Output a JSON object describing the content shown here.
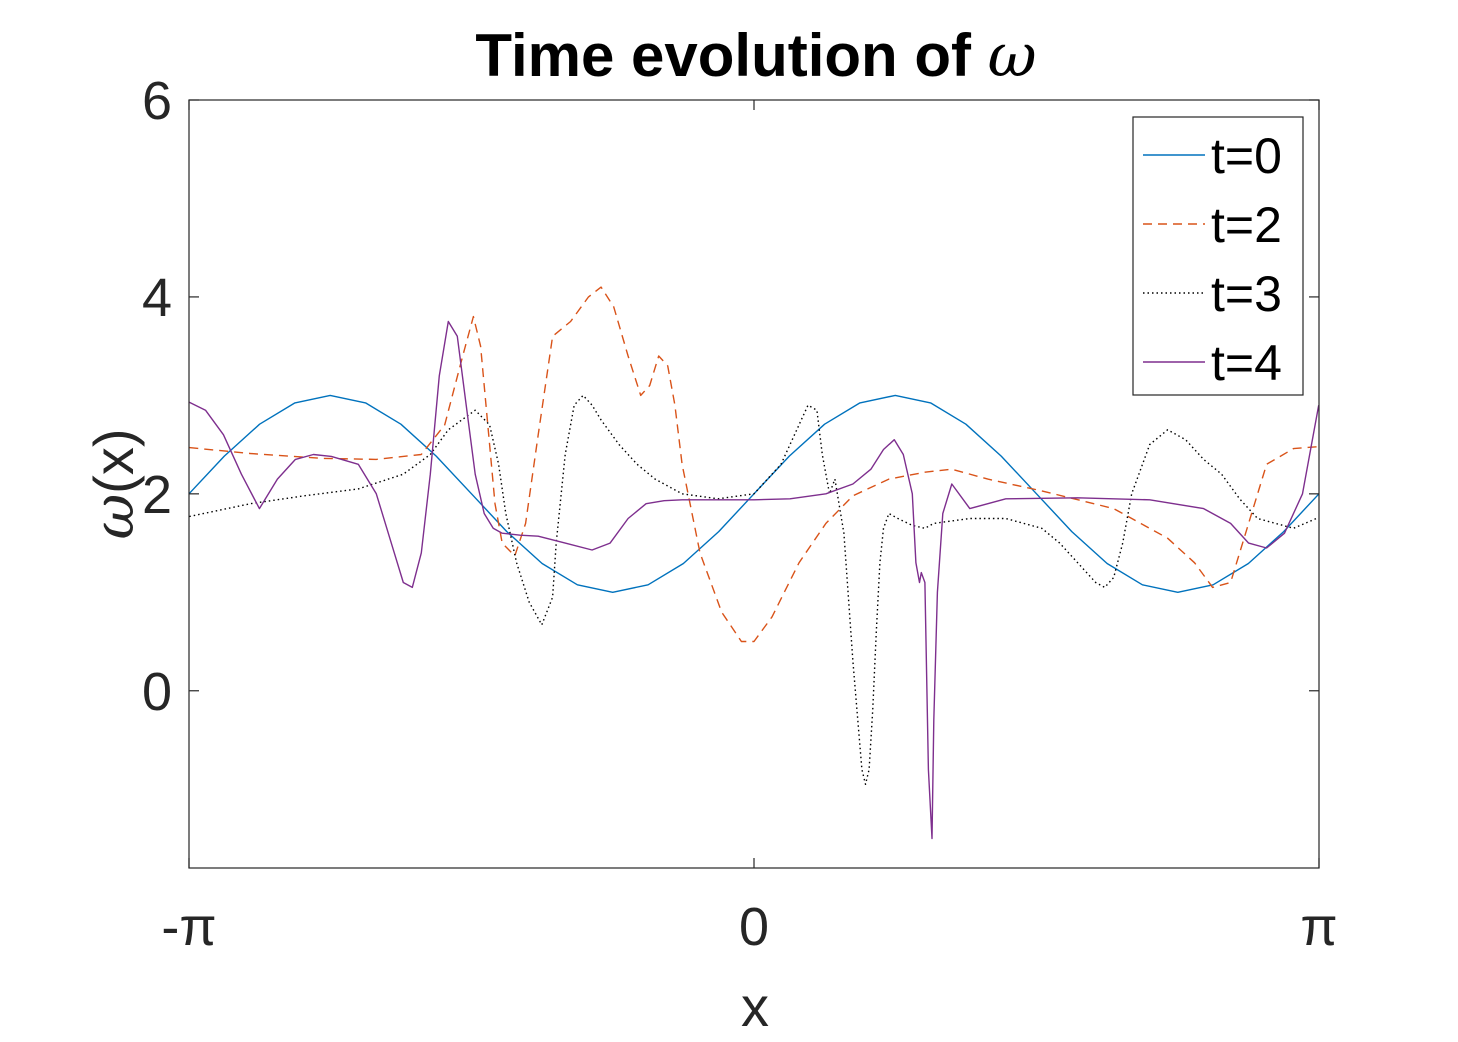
{
  "chart_data": {
    "type": "line",
    "title": {
      "text": "Time evolution of ",
      "symbol": "ω"
    },
    "xlabel": "x",
    "ylabel": {
      "symbol": "ω",
      "text": "(x)"
    },
    "xlim": [
      -3.14159,
      3.14159
    ],
    "ylim": [
      -1.8,
      6
    ],
    "xticks": [
      {
        "value": -3.14159,
        "label": "-π"
      },
      {
        "value": 0,
        "label": "0"
      },
      {
        "value": 3.14159,
        "label": "π"
      }
    ],
    "yticks": [
      {
        "value": 0,
        "label": "0"
      },
      {
        "value": 2,
        "label": "2"
      },
      {
        "value": 4,
        "label": "4"
      },
      {
        "value": 6,
        "label": "6"
      }
    ],
    "grid": false,
    "legend_position": "top-right",
    "series": [
      {
        "name": "t=0",
        "color": "#0072BD",
        "style": "solid",
        "x": [
          -3.1416,
          -2.9452,
          -2.7489,
          -2.5525,
          -2.3562,
          -2.1598,
          -1.9635,
          -1.7671,
          -1.5708,
          -1.3744,
          -1.1781,
          -0.9817,
          -0.7854,
          -0.589,
          -0.3927,
          -0.1963,
          0,
          0.1963,
          0.3927,
          0.589,
          0.7854,
          0.9817,
          1.1781,
          1.3744,
          1.5708,
          1.7671,
          1.9635,
          2.1598,
          2.3562,
          2.5525,
          2.7489,
          2.9452,
          3.1416
        ],
        "y": [
          2.0,
          2.383,
          2.707,
          2.924,
          3.0,
          2.924,
          2.707,
          2.383,
          2.0,
          1.617,
          1.293,
          1.076,
          1.0,
          1.076,
          1.293,
          1.617,
          2.0,
          2.383,
          2.707,
          2.924,
          3.0,
          2.924,
          2.707,
          2.383,
          2.0,
          1.617,
          1.293,
          1.076,
          1.0,
          1.076,
          1.293,
          1.617,
          2.0
        ]
      },
      {
        "name": "t=2",
        "color": "#D95319",
        "style": "dashed",
        "x": [
          -3.14,
          -2.8,
          -2.4,
          -2.1,
          -1.85,
          -1.72,
          -1.62,
          -1.56,
          -1.52,
          -1.48,
          -1.44,
          -1.4,
          -1.33,
          -1.27,
          -1.2,
          -1.12,
          -1.02,
          -0.92,
          -0.85,
          -0.78,
          -0.7,
          -0.63,
          -0.58,
          -0.53,
          -0.48,
          -0.44,
          -0.4,
          -0.3,
          -0.18,
          -0.07,
          0.0,
          0.1,
          0.25,
          0.4,
          0.55,
          0.75,
          0.95,
          1.1,
          1.3,
          1.6,
          2.0,
          2.3,
          2.45,
          2.55,
          2.65,
          2.75,
          2.85,
          3.0,
          3.14
        ],
        "y": [
          2.47,
          2.41,
          2.36,
          2.35,
          2.4,
          2.7,
          3.4,
          3.8,
          3.5,
          2.7,
          1.9,
          1.5,
          1.37,
          1.7,
          2.6,
          3.6,
          3.75,
          4.0,
          4.1,
          3.9,
          3.4,
          3.0,
          3.1,
          3.4,
          3.3,
          2.9,
          2.3,
          1.4,
          0.8,
          0.5,
          0.5,
          0.75,
          1.3,
          1.7,
          1.98,
          2.15,
          2.22,
          2.25,
          2.15,
          2.03,
          1.85,
          1.55,
          1.3,
          1.05,
          1.1,
          1.7,
          2.3,
          2.46,
          2.48
        ]
      },
      {
        "name": "t=3",
        "color": "#000000",
        "style": "dotted",
        "x": [
          -3.14,
          -2.8,
          -2.5,
          -2.2,
          -1.95,
          -1.8,
          -1.7,
          -1.55,
          -1.47,
          -1.42,
          -1.38,
          -1.32,
          -1.25,
          -1.18,
          -1.12,
          -1.1,
          -1.05,
          -1.0,
          -0.95,
          -0.9,
          -0.85,
          -0.75,
          -0.65,
          -0.55,
          -0.4,
          -0.2,
          0.0,
          0.15,
          0.3,
          0.35,
          0.38,
          0.42,
          0.45,
          0.5,
          0.55,
          0.6,
          0.62,
          0.64,
          0.66,
          0.68,
          0.7,
          0.72,
          0.75,
          0.8,
          0.88,
          0.95,
          1.0,
          1.2,
          1.4,
          1.6,
          1.7,
          1.8,
          1.9,
          1.95,
          2.0,
          2.05,
          2.1,
          2.2,
          2.3,
          2.4,
          2.5,
          2.6,
          2.7,
          2.8,
          3.0,
          3.14
        ],
        "y": [
          1.77,
          1.9,
          1.98,
          2.05,
          2.2,
          2.4,
          2.65,
          2.85,
          2.7,
          2.3,
          1.8,
          1.3,
          0.9,
          0.67,
          0.95,
          1.5,
          2.4,
          2.9,
          3.0,
          2.9,
          2.75,
          2.5,
          2.3,
          2.15,
          2.0,
          1.95,
          2.0,
          2.3,
          2.9,
          2.85,
          2.4,
          2.0,
          2.15,
          1.6,
          0.3,
          -0.8,
          -0.95,
          -0.8,
          -0.2,
          0.6,
          1.3,
          1.65,
          1.8,
          1.75,
          1.68,
          1.65,
          1.7,
          1.75,
          1.75,
          1.65,
          1.5,
          1.3,
          1.1,
          1.05,
          1.15,
          1.5,
          2.0,
          2.5,
          2.65,
          2.55,
          2.35,
          2.2,
          1.95,
          1.75,
          1.65,
          1.76
        ]
      },
      {
        "name": "t=4",
        "color": "#7E2F8E",
        "style": "solid",
        "x": [
          -3.14,
          -3.05,
          -2.95,
          -2.85,
          -2.75,
          -2.65,
          -2.55,
          -2.45,
          -2.35,
          -2.2,
          -2.1,
          -2.0,
          -1.95,
          -1.9,
          -1.85,
          -1.8,
          -1.75,
          -1.7,
          -1.65,
          -1.6,
          -1.55,
          -1.5,
          -1.45,
          -1.4,
          -1.3,
          -1.2,
          -1.05,
          -0.9,
          -0.8,
          -0.7,
          -0.6,
          -0.5,
          -0.4,
          -0.2,
          0.0,
          0.2,
          0.4,
          0.55,
          0.65,
          0.72,
          0.78,
          0.83,
          0.88,
          0.9,
          0.92,
          0.93,
          0.95,
          0.97,
          0.99,
          1.0,
          1.02,
          1.05,
          1.1,
          1.2,
          1.4,
          1.8,
          2.2,
          2.5,
          2.65,
          2.75,
          2.85,
          2.95,
          3.05,
          3.14
        ],
        "y": [
          2.93,
          2.85,
          2.6,
          2.2,
          1.85,
          2.15,
          2.35,
          2.4,
          2.38,
          2.3,
          2.0,
          1.4,
          1.1,
          1.05,
          1.4,
          2.2,
          3.2,
          3.75,
          3.6,
          2.9,
          2.2,
          1.8,
          1.65,
          1.6,
          1.58,
          1.57,
          1.5,
          1.43,
          1.5,
          1.75,
          1.9,
          1.93,
          1.94,
          1.94,
          1.94,
          1.95,
          2.0,
          2.1,
          2.25,
          2.45,
          2.55,
          2.4,
          2.0,
          1.3,
          1.1,
          1.2,
          1.1,
          -0.8,
          -1.5,
          -0.3,
          1.0,
          1.8,
          2.1,
          1.85,
          1.95,
          1.96,
          1.94,
          1.85,
          1.7,
          1.5,
          1.45,
          1.6,
          2.0,
          2.9
        ]
      }
    ]
  }
}
